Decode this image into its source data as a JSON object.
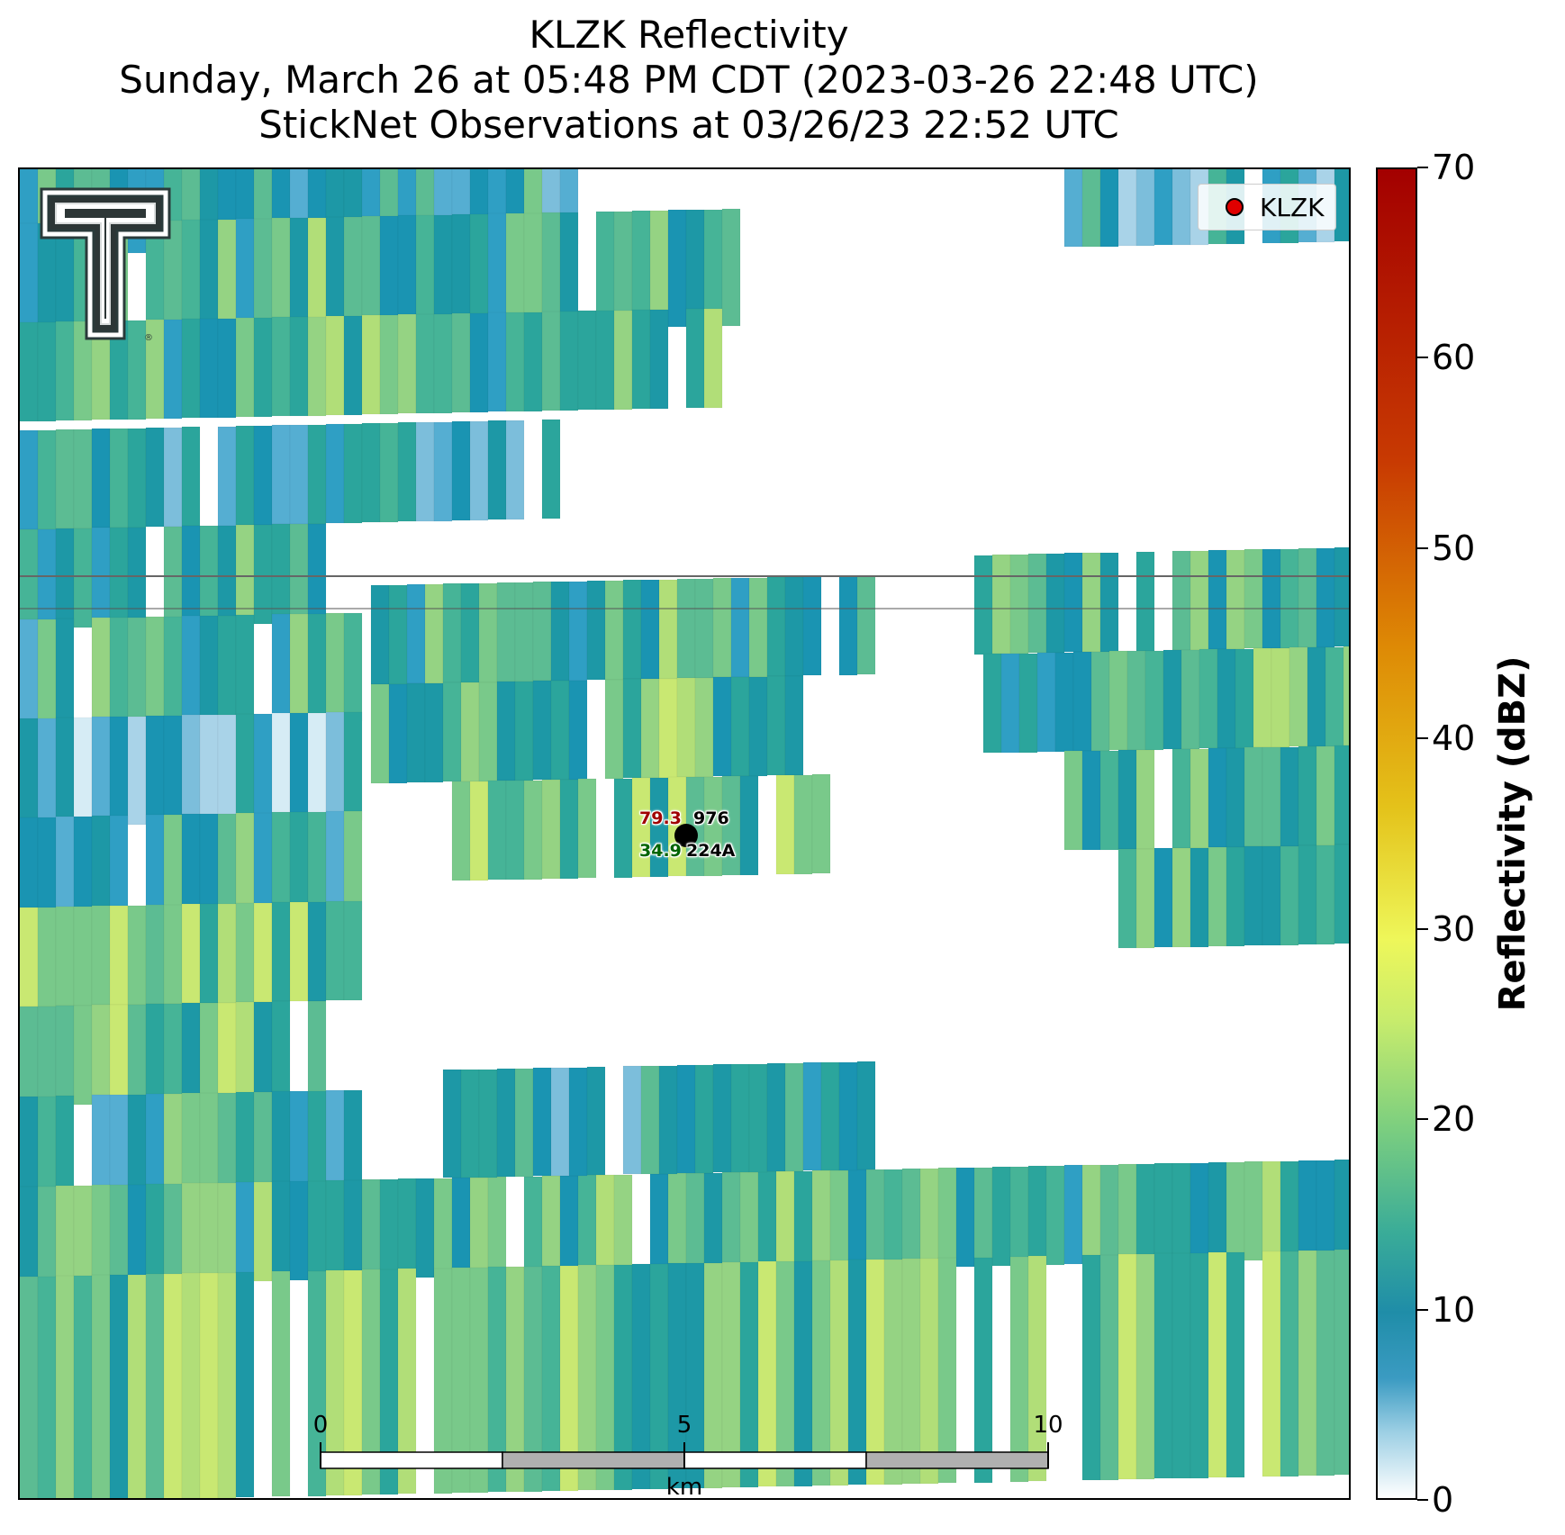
{
  "title": {
    "line1": "KLZK Reflectivity",
    "line2": "Sunday, March 26 at 05:48 PM CDT (2023-03-26 22:48 UTC)",
    "line3": "StickNet Observations at 03/26/23 22:52 UTC"
  },
  "legend": {
    "label": "KLZK",
    "marker_color": "#e00000"
  },
  "station": {
    "id": "224A",
    "temperature": "79.3",
    "dewpoint": "34.9",
    "pressure": "976",
    "temperature_color": "#a00000",
    "dewpoint_color": "#006400"
  },
  "scalebar": {
    "ticks": [
      "0",
      "5",
      "10"
    ],
    "unit": "km"
  },
  "colorbar": {
    "label": "Reflectivity (dBZ)",
    "ticks": [
      "0",
      "10",
      "20",
      "30",
      "40",
      "50",
      "60",
      "70"
    ],
    "range": [
      0,
      70
    ]
  },
  "palette": [
    "#ffffff",
    "#d6ecf5",
    "#a9d3e8",
    "#7cbedb",
    "#55aed2",
    "#2f9fc4",
    "#1a94b2",
    "#1d98a6",
    "#2ba59c",
    "#46b497",
    "#5cbc93",
    "#79c98a",
    "#95d383",
    "#b1de78",
    "#c9e872"
  ]
}
